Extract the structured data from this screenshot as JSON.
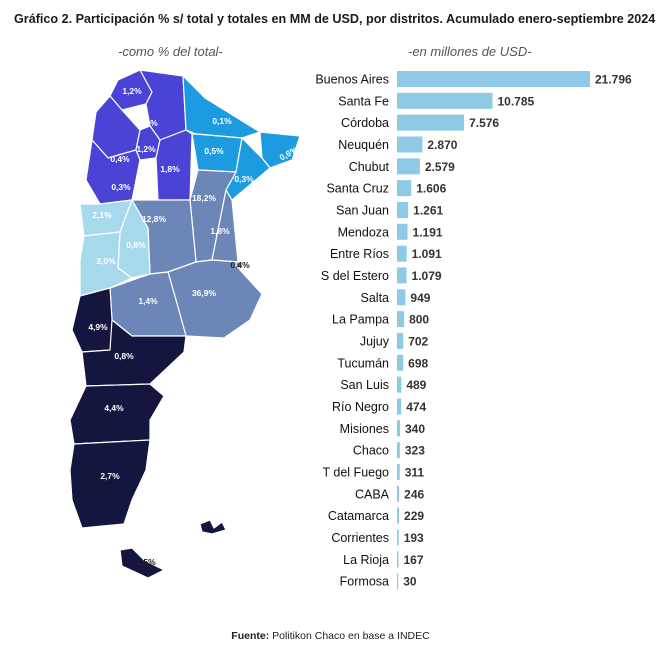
{
  "title": "Gráfico 2. Participación % s/ total y totales en MM de USD, por distritos. Acumulado enero-septiembre 2024",
  "subtitles": {
    "left": "-como % del total-",
    "right": "-en millones de USD-"
  },
  "source": {
    "label": "Fuente:",
    "text": "Politikon Chaco en base a INDEC"
  },
  "colors": {
    "bar": "#8ecae6",
    "navy": "#14163f",
    "slate": "#6c86b8",
    "paleblue": "#a6d9ec",
    "skyblue": "#1c9be0",
    "royal": "#4b43d6",
    "label_dark": "#222222"
  },
  "chart_data": {
    "type": "bar",
    "orientation": "horizontal",
    "categories": [
      "Buenos Aires",
      "Santa Fe",
      "Córdoba",
      "Neuquén",
      "Chubut",
      "Santa Cruz",
      "San Juan",
      "Mendoza",
      "Entre Ríos",
      "S del Estero",
      "Salta",
      "La Pampa",
      "Jujuy",
      "Tucumán",
      "San Luis",
      "Río Negro",
      "Misiones",
      "Chaco",
      "T del Fuego",
      "CABA",
      "Catamarca",
      "Corrientes",
      "La Rioja",
      "Formosa"
    ],
    "values": [
      21796,
      10785,
      7576,
      2870,
      2579,
      1606,
      1261,
      1191,
      1091,
      1079,
      949,
      800,
      702,
      698,
      489,
      474,
      340,
      323,
      311,
      246,
      229,
      193,
      167,
      30
    ],
    "value_labels": [
      "21.796",
      "10.785",
      "7.576",
      "2.870",
      "2.579",
      "1.606",
      "1.261",
      "1.191",
      "1.091",
      "1.079",
      "949",
      "800",
      "702",
      "698",
      "489",
      "474",
      "340",
      "323",
      "311",
      "246",
      "229",
      "193",
      "167",
      "30"
    ]
  },
  "map_labels": [
    {
      "text": "1,2%",
      "fill": "#ffffff"
    },
    {
      "text": "1,6%",
      "fill": "#ffffff"
    },
    {
      "text": "0,1%",
      "fill": "#ffffff"
    },
    {
      "text": "1,2%",
      "fill": "#ffffff"
    },
    {
      "text": "0,4%",
      "fill": "#ffffff"
    },
    {
      "text": "0,5%",
      "fill": "#ffffff"
    },
    {
      "text": "0,6%",
      "fill": "#ffffff"
    },
    {
      "text": "1,8%",
      "fill": "#ffffff"
    },
    {
      "text": "0,3%",
      "fill": "#ffffff"
    },
    {
      "text": "0,3%",
      "fill": "#ffffff"
    },
    {
      "text": "18,2%",
      "fill": "#ffffff"
    },
    {
      "text": "2,1%",
      "fill": "#ffffff"
    },
    {
      "text": "12,8%",
      "fill": "#ffffff"
    },
    {
      "text": "0,8%",
      "fill": "#ffffff"
    },
    {
      "text": "1,8%",
      "fill": "#ffffff"
    },
    {
      "text": "2,0%",
      "fill": "#ffffff"
    },
    {
      "text": "0,4%",
      "fill": "#222222"
    },
    {
      "text": "36,9%",
      "fill": "#ffffff"
    },
    {
      "text": "1,4%",
      "fill": "#ffffff"
    },
    {
      "text": "4,9%",
      "fill": "#ffffff"
    },
    {
      "text": "0,8%",
      "fill": "#ffffff"
    },
    {
      "text": "4,4%",
      "fill": "#ffffff"
    },
    {
      "text": "2,7%",
      "fill": "#ffffff"
    },
    {
      "text": "0,5%",
      "fill": "#222222"
    }
  ]
}
